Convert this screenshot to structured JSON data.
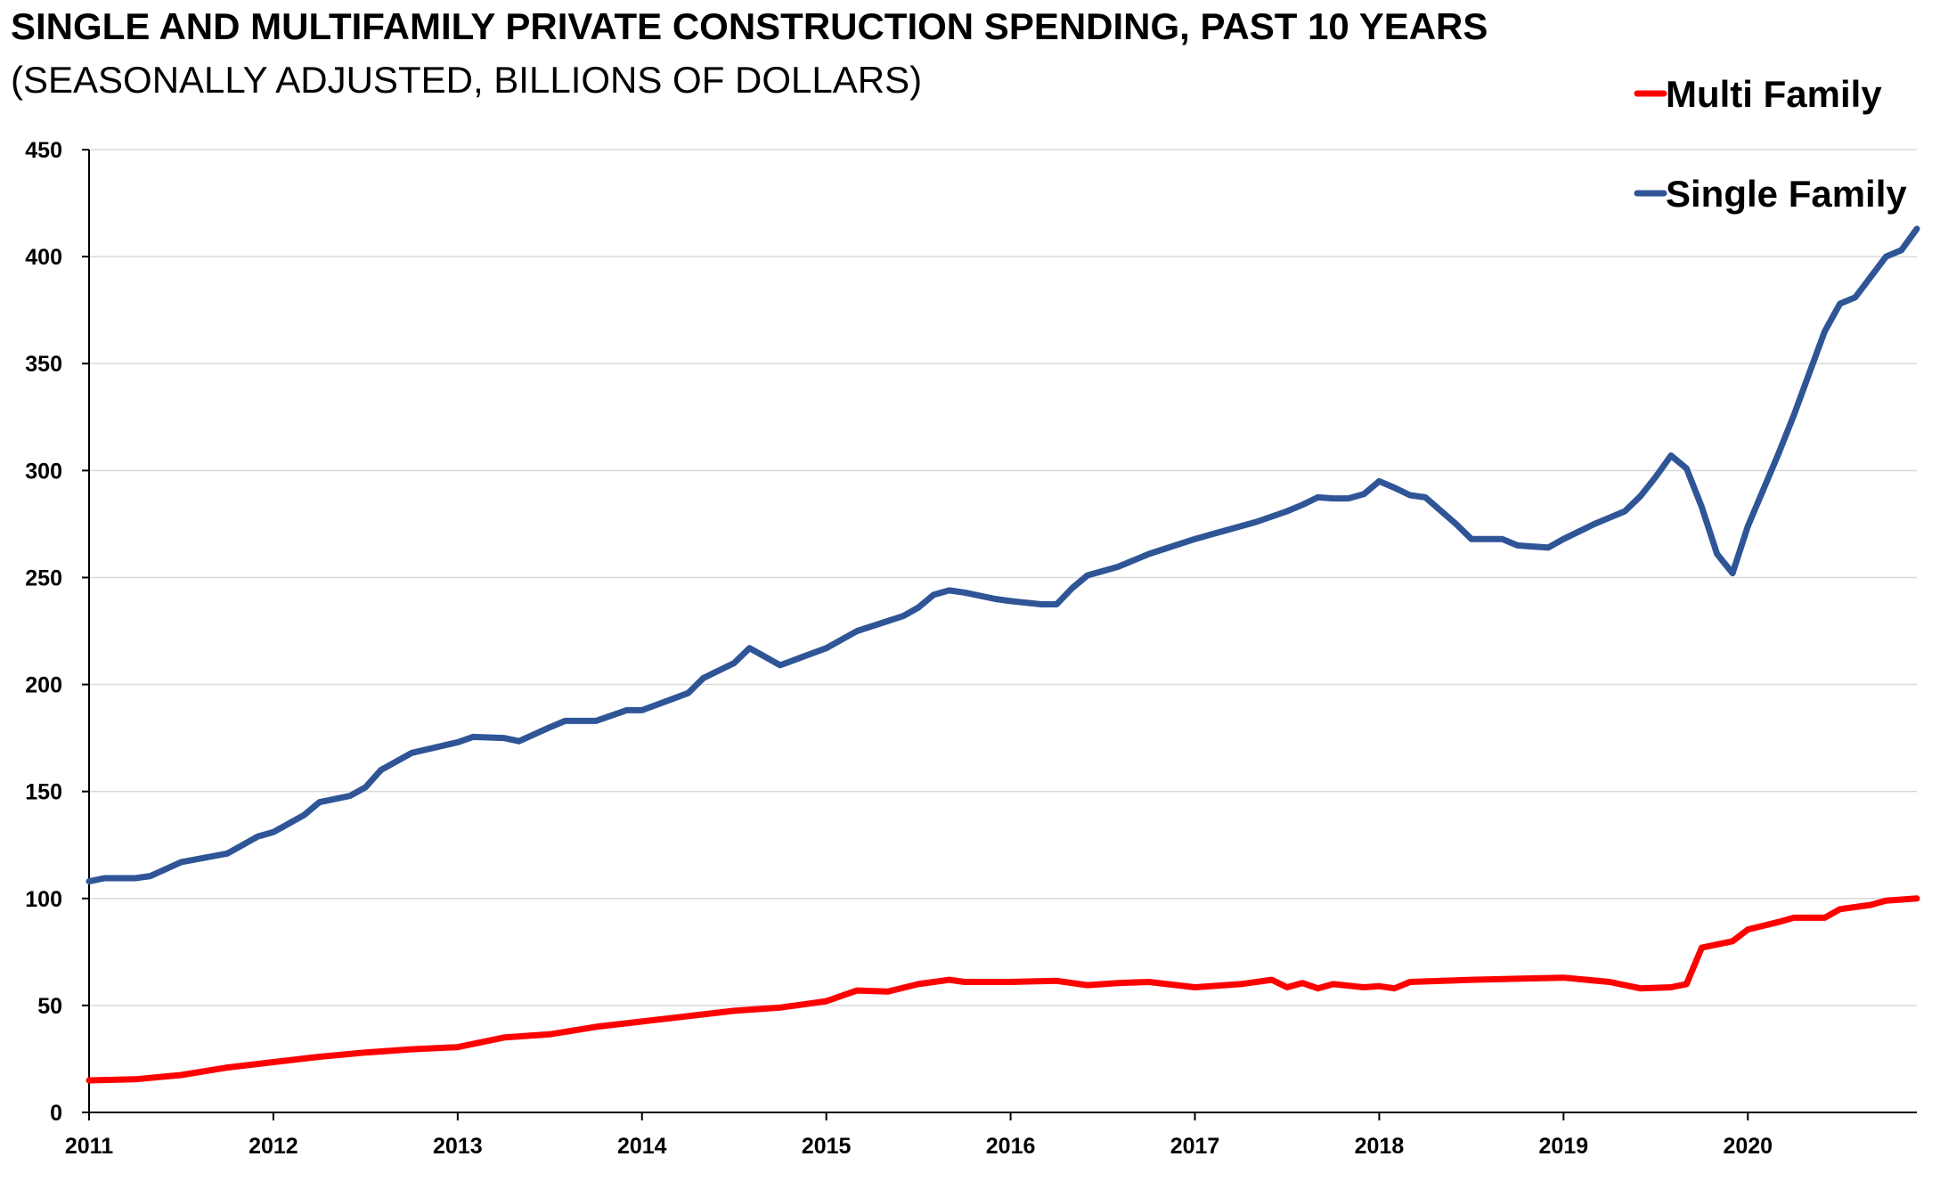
{
  "chart_data": {
    "type": "line",
    "title": "SINGLE AND MULTIFAMILY PRIVATE CONSTRUCTION SPENDING, PAST 10 YEARS",
    "subtitle": "(SEASONALLY ADJUSTED, BILLIONS OF DOLLARS)",
    "xlabel": "",
    "ylabel": "",
    "xlim": [
      2011,
      2020.917
    ],
    "ylim": [
      0,
      450
    ],
    "yticks": [
      0,
      50,
      100,
      150,
      200,
      250,
      300,
      350,
      400,
      450
    ],
    "xticks": [
      2011,
      2012,
      2013,
      2014,
      2015,
      2016,
      2017,
      2018,
      2019,
      2020
    ],
    "grid": "horizontal",
    "legend_position": "top-right",
    "series": [
      {
        "name": "Multi Family",
        "color": "#ff0000",
        "x": [
          2011.0,
          2011.25,
          2011.5,
          2011.75,
          2012.0,
          2012.25,
          2012.5,
          2012.75,
          2013.0,
          2013.25,
          2013.5,
          2013.75,
          2014.0,
          2014.25,
          2014.5,
          2014.75,
          2015.0,
          2015.167,
          2015.333,
          2015.5,
          2015.667,
          2015.75,
          2016.0,
          2016.25,
          2016.417,
          2016.583,
          2016.75,
          2017.0,
          2017.25,
          2017.417,
          2017.5,
          2017.583,
          2017.667,
          2017.75,
          2017.917,
          2018.0,
          2018.083,
          2018.167,
          2018.5,
          2018.75,
          2019.0,
          2019.25,
          2019.417,
          2019.583,
          2019.667,
          2019.75,
          2019.917,
          2020.0,
          2020.167,
          2020.25,
          2020.417,
          2020.5,
          2020.667,
          2020.75,
          2020.917
        ],
        "values": [
          15,
          15.5,
          17.5,
          21,
          23.5,
          26,
          28,
          29.5,
          30.5,
          35,
          36.5,
          40,
          42.5,
          45,
          47.5,
          49,
          52,
          57,
          56.5,
          60,
          62,
          61,
          61,
          61.5,
          59.5,
          60.5,
          61,
          58.5,
          60,
          62,
          58.5,
          60.5,
          58,
          60,
          58.5,
          59,
          58,
          61,
          62,
          62.5,
          63,
          61,
          58,
          58.5,
          60,
          77,
          80,
          85.5,
          89,
          91,
          91,
          95,
          97,
          99,
          100
        ]
      },
      {
        "name": "Single Family",
        "color": "#2f5597",
        "x": [
          2011.0,
          2011.083,
          2011.25,
          2011.333,
          2011.5,
          2011.75,
          2011.917,
          2012.0,
          2012.167,
          2012.25,
          2012.417,
          2012.5,
          2012.583,
          2012.75,
          2013.0,
          2013.083,
          2013.25,
          2013.333,
          2013.5,
          2013.583,
          2013.75,
          2013.917,
          2014.0,
          2014.25,
          2014.333,
          2014.5,
          2014.583,
          2014.667,
          2014.75,
          2015.0,
          2015.167,
          2015.417,
          2015.5,
          2015.583,
          2015.667,
          2015.75,
          2015.917,
          2016.0,
          2016.167,
          2016.25,
          2016.333,
          2016.417,
          2016.583,
          2016.75,
          2017.0,
          2017.083,
          2017.25,
          2017.333,
          2017.5,
          2017.583,
          2017.667,
          2017.75,
          2017.833,
          2017.917,
          2018.0,
          2018.083,
          2018.167,
          2018.25,
          2018.417,
          2018.5,
          2018.583,
          2018.667,
          2018.75,
          2018.833,
          2018.917,
          2019.0,
          2019.167,
          2019.25,
          2019.333,
          2019.417,
          2019.5,
          2019.583,
          2019.667,
          2019.75,
          2019.833,
          2019.917,
          2020.0,
          2020.167,
          2020.25,
          2020.417,
          2020.5,
          2020.583,
          2020.75,
          2020.833,
          2020.917
        ],
        "values": [
          108,
          109.5,
          109.5,
          110.5,
          117,
          121,
          129,
          131,
          139,
          145,
          148,
          152,
          160,
          168,
          173,
          175.5,
          175,
          173.5,
          180,
          183,
          183,
          188,
          188,
          196,
          203,
          210,
          217,
          213,
          209,
          217,
          225,
          232,
          236,
          242,
          244,
          243,
          240,
          239,
          237.5,
          237.5,
          245,
          251,
          255,
          261,
          268,
          270,
          274,
          276,
          281,
          284,
          287.5,
          287,
          287,
          289,
          295,
          292,
          288.5,
          287.5,
          275,
          268,
          268,
          268,
          265,
          264.5,
          264,
          268,
          275,
          278,
          281,
          288,
          297,
          307,
          301,
          283,
          261,
          252,
          274,
          308,
          326,
          365,
          378,
          381,
          400,
          403,
          413
        ]
      }
    ]
  }
}
